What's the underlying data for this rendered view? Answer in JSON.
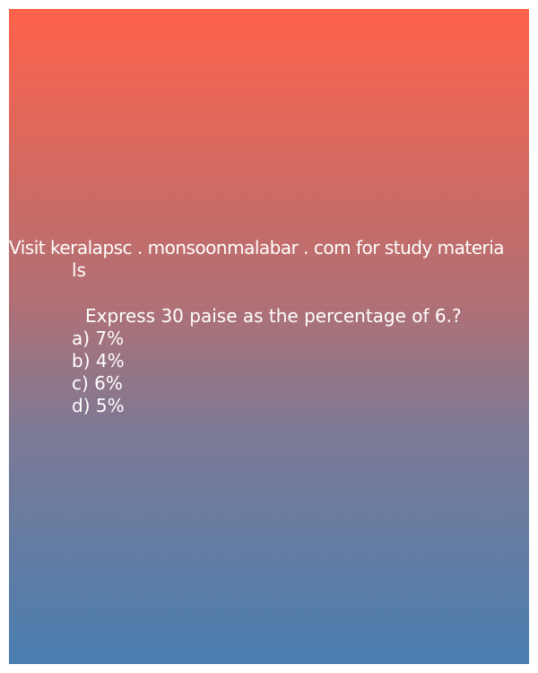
{
  "header": {
    "line1": "Visit keralapsc . monsoonmalabar . com for study materia",
    "line2": "ls"
  },
  "question": "Express 30 paise as the percentage of 6.?",
  "options": [
    "a) 7%",
    "b) 4%",
    "c) 6%",
    "d) 5%"
  ],
  "colors": {
    "gradient_top": "#fe624a",
    "gradient_bottom": "#4a7eb0",
    "text": "#ffffff"
  }
}
